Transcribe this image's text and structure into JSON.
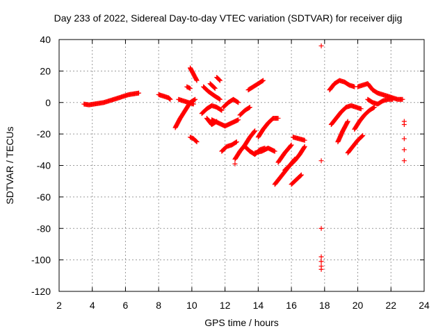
{
  "chart_data": {
    "type": "scatter",
    "title": "Day 233 of 2022, Sidereal Day-to-day VTEC variation (SDTVAR) for receiver djig",
    "xlabel": "GPS time / hours",
    "ylabel": "SDTVAR / TECUs",
    "xlim": [
      2,
      24
    ],
    "ylim": [
      -120,
      40
    ],
    "xticks": [
      "2",
      "4",
      "6",
      "8",
      "10",
      "12",
      "14",
      "16",
      "18",
      "20",
      "22",
      "24"
    ],
    "yticks": [
      "40",
      "20",
      "0",
      "-20",
      "-40",
      "-60",
      "-80",
      "-100",
      "-120"
    ],
    "grid": true,
    "marker": "+",
    "color": "#ff0000",
    "series": [
      {
        "name": "seg1",
        "x": [
          3.5,
          3.8,
          4.1,
          4.4,
          4.7,
          5.0,
          5.3,
          5.6,
          5.9,
          6.2,
          6.5,
          6.8
        ],
        "y": [
          -1,
          -1.5,
          -1,
          -0.5,
          0,
          1,
          2,
          3,
          4,
          5,
          5.5,
          6
        ]
      },
      {
        "name": "seg2",
        "x": [
          8.0,
          8.3,
          8.6,
          8.7
        ],
        "y": [
          5,
          4,
          3,
          2
        ]
      },
      {
        "name": "seg3",
        "x": [
          9.0,
          9.3,
          9.6,
          9.9,
          10.2
        ],
        "y": [
          -16,
          -10,
          -5,
          0,
          2
        ]
      },
      {
        "name": "seg4",
        "x": [
          9.2,
          9.5,
          9.8,
          10.1
        ],
        "y": [
          2,
          1,
          0,
          -1
        ]
      },
      {
        "name": "seg5",
        "x": [
          9.9,
          10.0,
          10.1,
          10.2,
          10.3
        ],
        "y": [
          22,
          20,
          18,
          16,
          14
        ]
      },
      {
        "name": "seg6",
        "x": [
          9.7,
          9.9
        ],
        "y": [
          10,
          9
        ]
      },
      {
        "name": "seg7",
        "x": [
          9.9,
          10.1,
          10.3
        ],
        "y": [
          -22,
          -23,
          -25
        ]
      },
      {
        "name": "seg8",
        "x": [
          10.6,
          10.9,
          11.2,
          11.5,
          11.8
        ],
        "y": [
          -7,
          -4,
          -2,
          -3,
          -5
        ]
      },
      {
        "name": "seg9",
        "x": [
          10.7,
          11.0,
          11.4,
          11.7
        ],
        "y": [
          10,
          7,
          4,
          2
        ]
      },
      {
        "name": "seg10",
        "x": [
          10.9,
          11.2,
          11.5
        ],
        "y": [
          -10,
          -14,
          -12
        ]
      },
      {
        "name": "seg11",
        "x": [
          11.2,
          11.6,
          12.0,
          12.4,
          12.8
        ],
        "y": [
          -11,
          -13,
          -15,
          -13,
          -11
        ]
      },
      {
        "name": "seg12",
        "x": [
          11.5,
          11.7
        ],
        "y": [
          16,
          14
        ]
      },
      {
        "name": "seg13",
        "x": [
          11.1,
          11.4
        ],
        "y": [
          12,
          9
        ]
      },
      {
        "name": "seg14",
        "x": [
          11.8,
          12.1,
          12.4,
          12.7
        ],
        "y": [
          -31,
          -28,
          -27,
          -25
        ]
      },
      {
        "name": "seg15",
        "x": [
          11.9,
          12.2,
          12.5,
          12.8
        ],
        "y": [
          -3,
          0,
          2,
          0
        ]
      },
      {
        "name": "seg16",
        "x": [
          12.6,
          12.9,
          13.2,
          13.5,
          13.8
        ],
        "y": [
          -36,
          -31,
          -27,
          -22,
          -18
        ]
      },
      {
        "name": "seg17",
        "x": [
          12.9,
          13.2,
          13.5
        ],
        "y": [
          -8,
          -5,
          -3
        ]
      },
      {
        "name": "seg18",
        "x": [
          13.4,
          13.7,
          14.0,
          14.3
        ],
        "y": [
          8,
          10,
          12,
          14
        ]
      },
      {
        "name": "seg19",
        "x": [
          13.2,
          13.5,
          13.8,
          14.1,
          14.4
        ],
        "y": [
          -28,
          -31,
          -33,
          -30,
          -29
        ]
      },
      {
        "name": "seg20",
        "x": [
          14.0,
          14.3,
          14.6,
          14.9,
          15.2
        ],
        "y": [
          -22,
          -17,
          -13,
          -10,
          -10
        ]
      },
      {
        "name": "seg21",
        "x": [
          13.8,
          14.2,
          14.6,
          15.0
        ],
        "y": [
          -32,
          -31,
          -29,
          -31
        ]
      },
      {
        "name": "seg22",
        "x": [
          12.6
        ],
        "y": [
          -39
        ]
      },
      {
        "name": "seg23",
        "x": [
          15.0,
          15.3,
          15.6,
          15.9,
          16.2
        ],
        "y": [
          -52,
          -48,
          -44,
          -40,
          -36
        ]
      },
      {
        "name": "seg24",
        "x": [
          15.6,
          15.9,
          16.2,
          16.5,
          16.8
        ],
        "y": [
          -43,
          -40,
          -37,
          -33,
          -28
        ]
      },
      {
        "name": "seg25",
        "x": [
          16.0,
          16.3,
          16.6
        ],
        "y": [
          -52,
          -49,
          -46
        ]
      },
      {
        "name": "seg26",
        "x": [
          15.2,
          15.6,
          16.0
        ],
        "y": [
          -38,
          -32,
          -27
        ]
      },
      {
        "name": "seg27",
        "x": [
          16.1,
          16.8
        ],
        "y": [
          -22,
          -24
        ]
      },
      {
        "name": "seg28",
        "x": [
          17.8,
          17.8,
          17.8,
          17.8,
          17.8,
          17.8,
          17.8
        ],
        "y": [
          36,
          -37,
          -80,
          -98,
          -101,
          -104,
          -106
        ]
      },
      {
        "name": "seg29",
        "x": [
          18.3,
          18.6,
          18.9,
          19.2,
          19.5,
          19.8
        ],
        "y": [
          8,
          12,
          14,
          13,
          11,
          10
        ]
      },
      {
        "name": "seg30",
        "x": [
          18.4,
          18.7,
          19.0,
          19.3,
          19.6,
          19.9,
          20.2
        ],
        "y": [
          -14,
          -10,
          -6,
          -3,
          -2,
          -3,
          -4
        ]
      },
      {
        "name": "seg31",
        "x": [
          18.8,
          19.1,
          19.4
        ],
        "y": [
          -25,
          -18,
          -12
        ]
      },
      {
        "name": "seg32",
        "x": [
          19.4,
          19.7,
          20.0,
          20.3
        ],
        "y": [
          -32,
          -28,
          -24,
          -21
        ]
      },
      {
        "name": "seg33",
        "x": [
          19.8,
          20.1,
          20.4,
          20.7,
          21.0
        ],
        "y": [
          -17,
          -12,
          -8,
          -5,
          -3
        ]
      },
      {
        "name": "seg34",
        "x": [
          20.0,
          20.3,
          20.6,
          20.9,
          21.2,
          21.5,
          21.8,
          22.1,
          22.4,
          22.7
        ],
        "y": [
          10,
          11,
          12,
          8,
          6,
          5,
          4,
          3,
          2,
          2
        ]
      },
      {
        "name": "seg35",
        "x": [
          20.6,
          20.9,
          21.2,
          21.5,
          21.8,
          22.1
        ],
        "y": [
          2,
          0,
          -1,
          1,
          2,
          2
        ]
      },
      {
        "name": "seg36",
        "x": [
          22.8,
          22.8,
          22.8,
          22.8,
          22.8
        ],
        "y": [
          -12,
          -14,
          -23,
          -30,
          -37
        ]
      }
    ]
  }
}
